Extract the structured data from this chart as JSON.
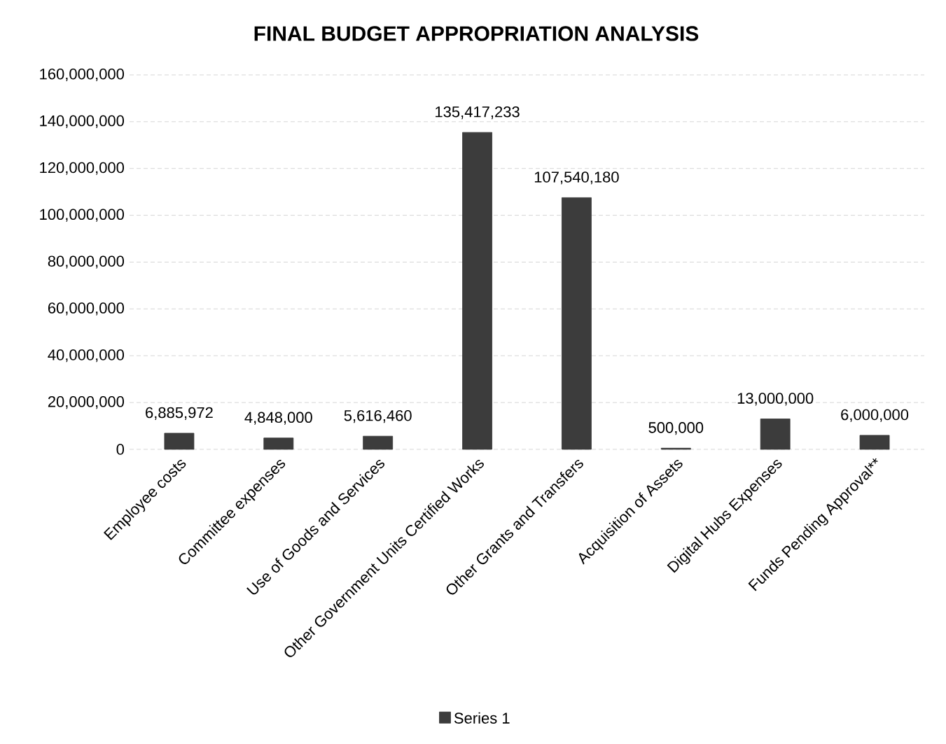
{
  "chart_data": {
    "type": "bar",
    "title": "FINAL BUDGET APPROPRIATION ANALYSIS",
    "categories": [
      "Employee costs",
      "Committee expenses",
      "Use of Goods and Services",
      "Other Government Units Certified Works",
      "Other Grants and Transfers",
      "Acquisition of Assets",
      "Digital Hubs Expenses",
      "Funds Pending Approval**"
    ],
    "series": [
      {
        "name": "Series 1",
        "color": "#3c3c3c",
        "values": [
          6885972,
          4848000,
          5616460,
          135417233,
          107540180,
          500000,
          13000000,
          6000000
        ],
        "value_labels": [
          "6,885,972",
          "4,848,000",
          "5,616,460",
          "135,417,233",
          "107,540,180",
          "500,000",
          "13,000,000",
          "6,000,000"
        ]
      }
    ],
    "ylim": [
      0,
      160000000
    ],
    "yticks": [
      {
        "value": 0,
        "label": "0"
      },
      {
        "value": 20000000,
        "label": "20,000,000"
      },
      {
        "value": 40000000,
        "label": "40,000,000"
      },
      {
        "value": 60000000,
        "label": "60,000,000"
      },
      {
        "value": 80000000,
        "label": "80,000,000"
      },
      {
        "value": 100000000,
        "label": "100,000,000"
      },
      {
        "value": 120000000,
        "label": "120,000,000"
      },
      {
        "value": 140000000,
        "label": "140,000,000"
      },
      {
        "value": 160000000,
        "label": "160,000,000"
      }
    ],
    "grid": "y",
    "legend": "bottom"
  }
}
